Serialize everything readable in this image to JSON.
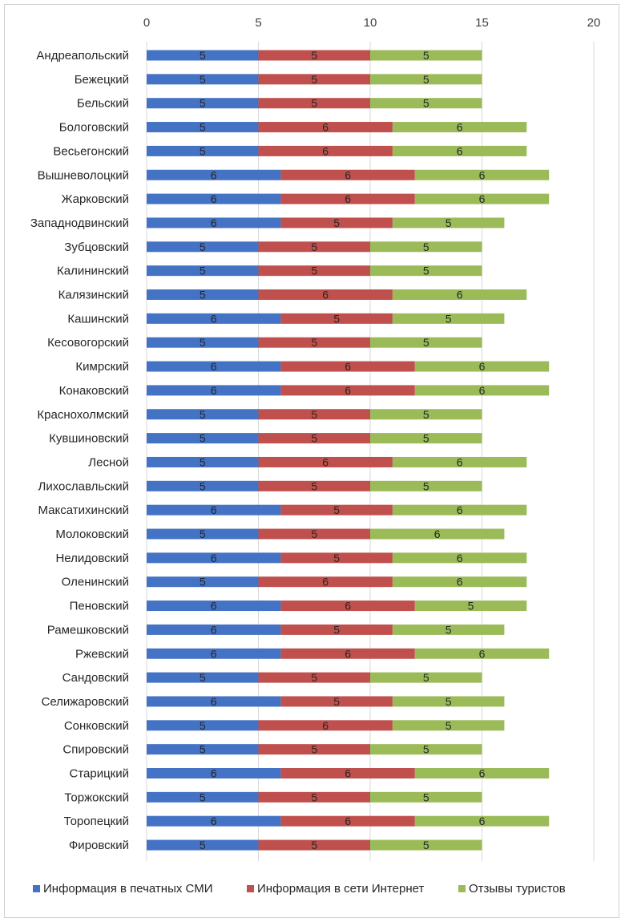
{
  "chart_data": {
    "type": "bar",
    "orientation": "horizontal",
    "stacked": true,
    "title": "",
    "xlabel": "",
    "ylabel": "",
    "xlim": [
      0,
      20
    ],
    "xticks": [
      0,
      5,
      10,
      15,
      20
    ],
    "grid": true,
    "legend_position": "bottom",
    "categories": [
      "Андреапольский",
      "Бежецкий",
      "Бельский",
      "Бологовский",
      "Весьегонский",
      "Вышневолоцкий",
      "Жарковский",
      "Западнодвинский",
      "Зубцовский",
      "Калининский",
      "Калязинский",
      "Кашинский",
      "Кесовогорский",
      "Кимрский",
      "Конаковский",
      "Краснохолмский",
      "Кувшиновский",
      "Лесной",
      "Лихославльский",
      "Максатихинский",
      "Молоковский",
      "Нелидовский",
      "Оленинский",
      "Пеновский",
      "Рамешковский",
      "Ржевский",
      "Сандовский",
      "Селижаровский",
      "Сонковский",
      "Спировский",
      "Старицкий",
      "Торжокский",
      "Торопецкий",
      "Фировский"
    ],
    "series": [
      {
        "name": "Информация в печатных СМИ",
        "color": "#4472c4",
        "values": [
          5,
          5,
          5,
          5,
          5,
          6,
          6,
          6,
          5,
          5,
          5,
          6,
          5,
          6,
          6,
          5,
          5,
          5,
          5,
          6,
          5,
          6,
          5,
          6,
          6,
          6,
          5,
          6,
          5,
          5,
          6,
          5,
          6,
          5
        ]
      },
      {
        "name": "Информация в сети Интернет",
        "color": "#c0504d",
        "values": [
          5,
          5,
          5,
          6,
          6,
          6,
          6,
          5,
          5,
          5,
          6,
          5,
          5,
          6,
          6,
          5,
          5,
          6,
          5,
          5,
          5,
          5,
          6,
          6,
          5,
          6,
          5,
          5,
          6,
          5,
          6,
          5,
          6,
          5
        ]
      },
      {
        "name": "Отзывы туристов",
        "color": "#9bbb59",
        "values": [
          5,
          5,
          5,
          6,
          6,
          6,
          6,
          5,
          5,
          5,
          6,
          5,
          5,
          6,
          6,
          5,
          5,
          6,
          5,
          6,
          6,
          6,
          6,
          5,
          5,
          6,
          5,
          5,
          5,
          5,
          6,
          5,
          6,
          5
        ]
      }
    ]
  }
}
